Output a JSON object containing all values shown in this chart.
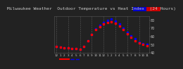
{
  "title": "Milwaukee Weather  Outdoor Temperature vs Heat Index  (24 Hours)",
  "bg_color": "#222222",
  "plot_bg_color": "#222222",
  "grid_color": "#666666",
  "temp_color": "#ff0000",
  "hi_color": "#0000ff",
  "legend_bar_color1": "#0000cc",
  "legend_bar_color2": "#cc0000",
  "hours": [
    0,
    1,
    2,
    3,
    4,
    5,
    6,
    7,
    8,
    9,
    10,
    11,
    12,
    13,
    14,
    15,
    16,
    17,
    18,
    19,
    20,
    21,
    22,
    23
  ],
  "temp": [
    48,
    47,
    46,
    46,
    45,
    45,
    44,
    48,
    55,
    62,
    68,
    72,
    75,
    77,
    78,
    76,
    73,
    68,
    63,
    59,
    55,
    52,
    50,
    49
  ],
  "heat_index": [
    48,
    47,
    46,
    46,
    45,
    45,
    44,
    48,
    55,
    62,
    69,
    74,
    77,
    80,
    81,
    79,
    75,
    70,
    65,
    61,
    57,
    53,
    51,
    50
  ],
  "ylim": [
    40,
    85
  ],
  "ytick_vals": [
    40,
    50,
    60,
    70,
    80
  ],
  "ytick_labels": [
    "40",
    "50",
    "60",
    "70",
    "80"
  ],
  "xtick_positions": [
    0,
    1,
    2,
    3,
    4,
    5,
    6,
    7,
    8,
    9,
    10,
    11,
    12,
    13,
    14,
    15,
    16,
    17,
    18,
    19,
    20,
    21,
    22,
    23
  ],
  "xtick_labels": [
    "12",
    "1",
    "2",
    "3",
    "4",
    "5",
    "6",
    "7",
    "8",
    "9",
    "10",
    "11",
    "12",
    "1",
    "2",
    "3",
    "4",
    "5",
    "6",
    "7",
    "8",
    "9",
    "10",
    "11"
  ],
  "vgrid_positions": [
    0,
    3,
    6,
    9,
    12,
    15,
    18,
    21
  ],
  "title_fontsize": 4.5,
  "tick_fontsize": 3.5,
  "marker_size": 1.8,
  "text_color": "#cccccc"
}
